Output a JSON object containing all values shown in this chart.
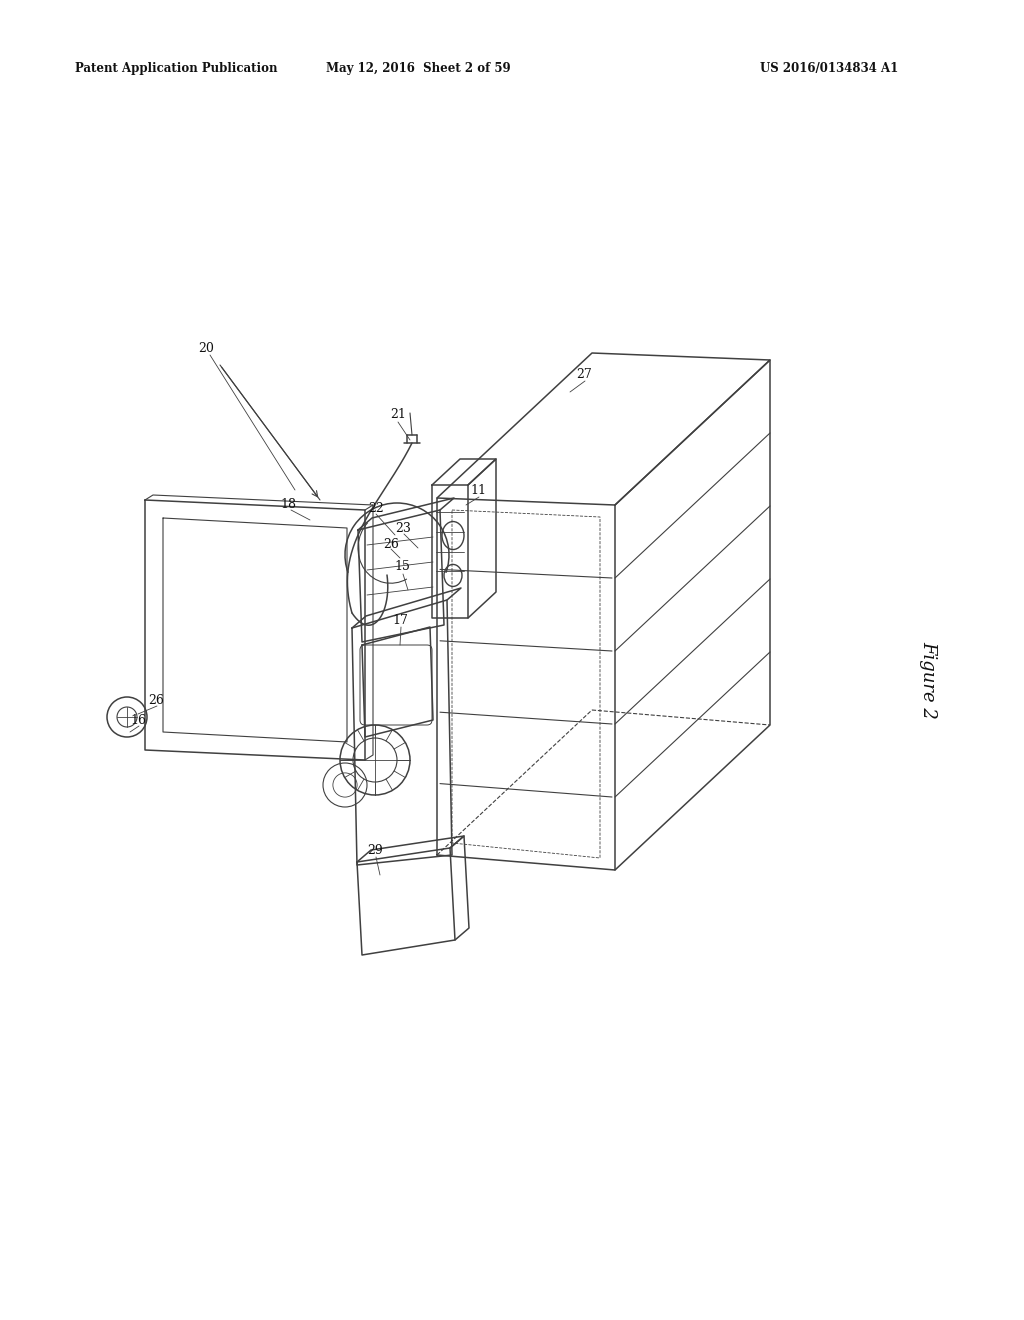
{
  "header_left": "Patent Application Publication",
  "header_center": "May 12, 2016  Sheet 2 of 59",
  "header_right": "US 2016/0134834 A1",
  "figure_label": "Figure 2",
  "bg_color": "#ffffff",
  "lc": "#404040",
  "lc_dot": "#555555",
  "label_fs": 9,
  "header_fs": 8.5
}
